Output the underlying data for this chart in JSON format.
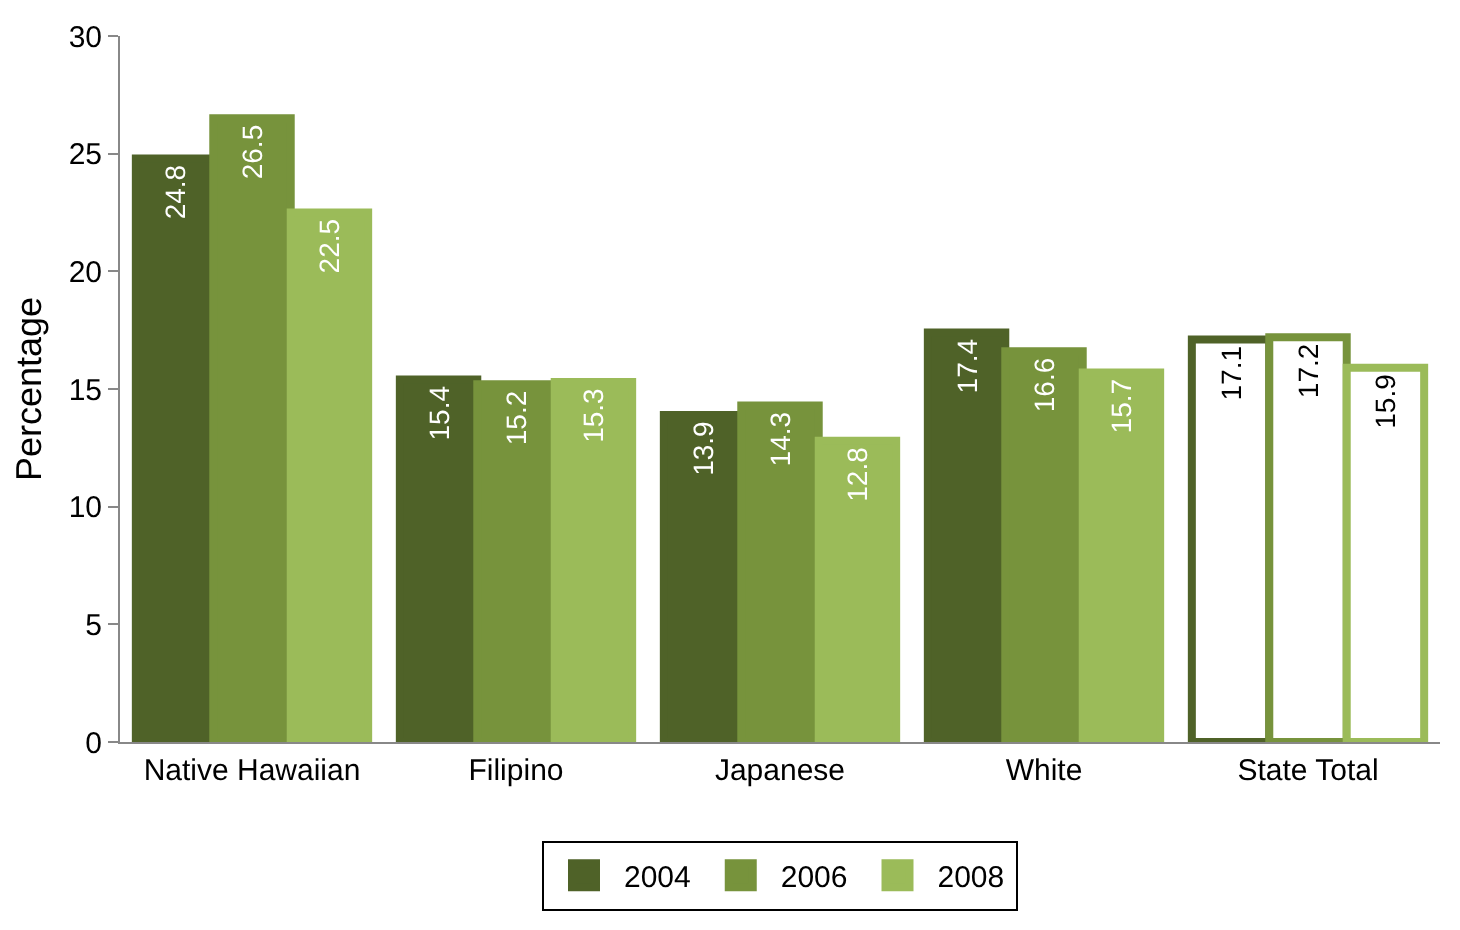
{
  "chart_data": {
    "type": "bar",
    "ylabel": "Percentage",
    "categories": [
      "Native Hawaiian",
      "Filipino",
      "Japanese",
      "White",
      "State Total"
    ],
    "series": [
      {
        "name": "2004",
        "color": "#4f6228",
        "colors": [
          "#4f6228",
          "#4f6228",
          "#4f6228",
          "#4f6228",
          "#ffffff"
        ],
        "values": [
          24.8,
          15.4,
          13.9,
          17.4,
          17.1
        ]
      },
      {
        "name": "2006",
        "color": "#77933c",
        "colors": [
          "#77933c",
          "#77933c",
          "#77933c",
          "#77933c",
          "#ffffff"
        ],
        "values": [
          26.5,
          15.2,
          14.3,
          16.6,
          17.2
        ]
      },
      {
        "name": "2008",
        "color": "#9bbb59",
        "colors": [
          "#9bbb59",
          "#9bbb59",
          "#9bbb59",
          "#9bbb59",
          "#ffffff"
        ],
        "values": [
          22.5,
          15.3,
          12.8,
          15.7,
          15.9
        ]
      }
    ],
    "ylim": [
      0,
      30
    ],
    "yticks": [
      0,
      5,
      10,
      15,
      20,
      25,
      30
    ],
    "legend": "bottom",
    "data_labels": true
  }
}
